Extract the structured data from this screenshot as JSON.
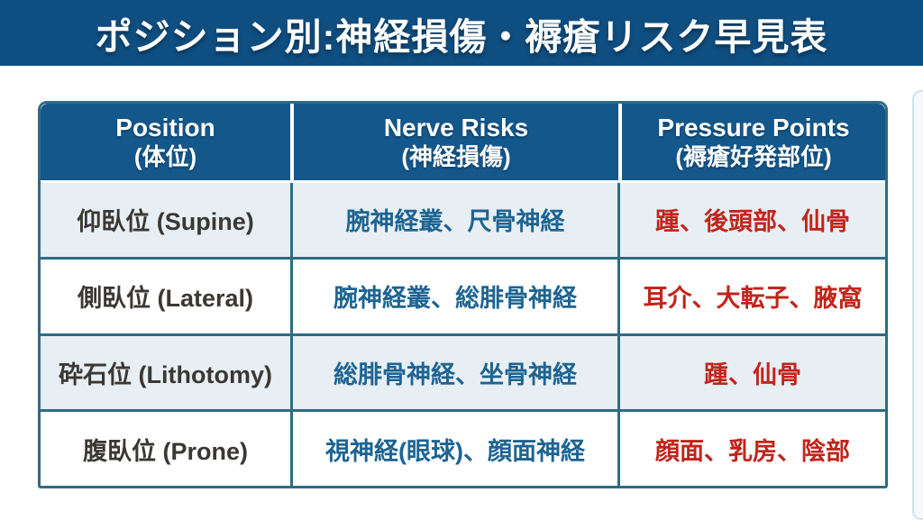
{
  "page": {
    "title": "ポジション別:神経損傷・褥瘡リスク早見表"
  },
  "colors": {
    "banner_bg": "#0f4e80",
    "header_bg": "#14578b",
    "row_alt_bg": "#e8eff4",
    "row_bg": "#ffffff",
    "table_border": "#2e6b85",
    "position_text": "#3b3733",
    "nerve_text": "#1d6492",
    "pressure_text": "#c2241b"
  },
  "table": {
    "columns": [
      {
        "en": "Position",
        "ja": "(体位)"
      },
      {
        "en": "Nerve Risks",
        "ja": "(神経損傷)"
      },
      {
        "en": "Pressure Points",
        "ja": "(褥瘡好発部位)"
      }
    ],
    "rows": [
      {
        "position": "仰臥位 (Supine)",
        "nerve": "腕神経叢、尺骨神経",
        "pressure": "踵、後頭部、仙骨"
      },
      {
        "position": "側臥位 (Lateral)",
        "nerve": "腕神経叢、総腓骨神経",
        "pressure": "耳介、大転子、腋窩"
      },
      {
        "position": "砕石位 (Lithotomy)",
        "nerve": "総腓骨神経、坐骨神経",
        "pressure": "踵、仙骨"
      },
      {
        "position": "腹臥位 (Prone)",
        "nerve": "視神経(眼球)、顔面神経",
        "pressure": "顔面、乳房、陰部"
      }
    ]
  }
}
